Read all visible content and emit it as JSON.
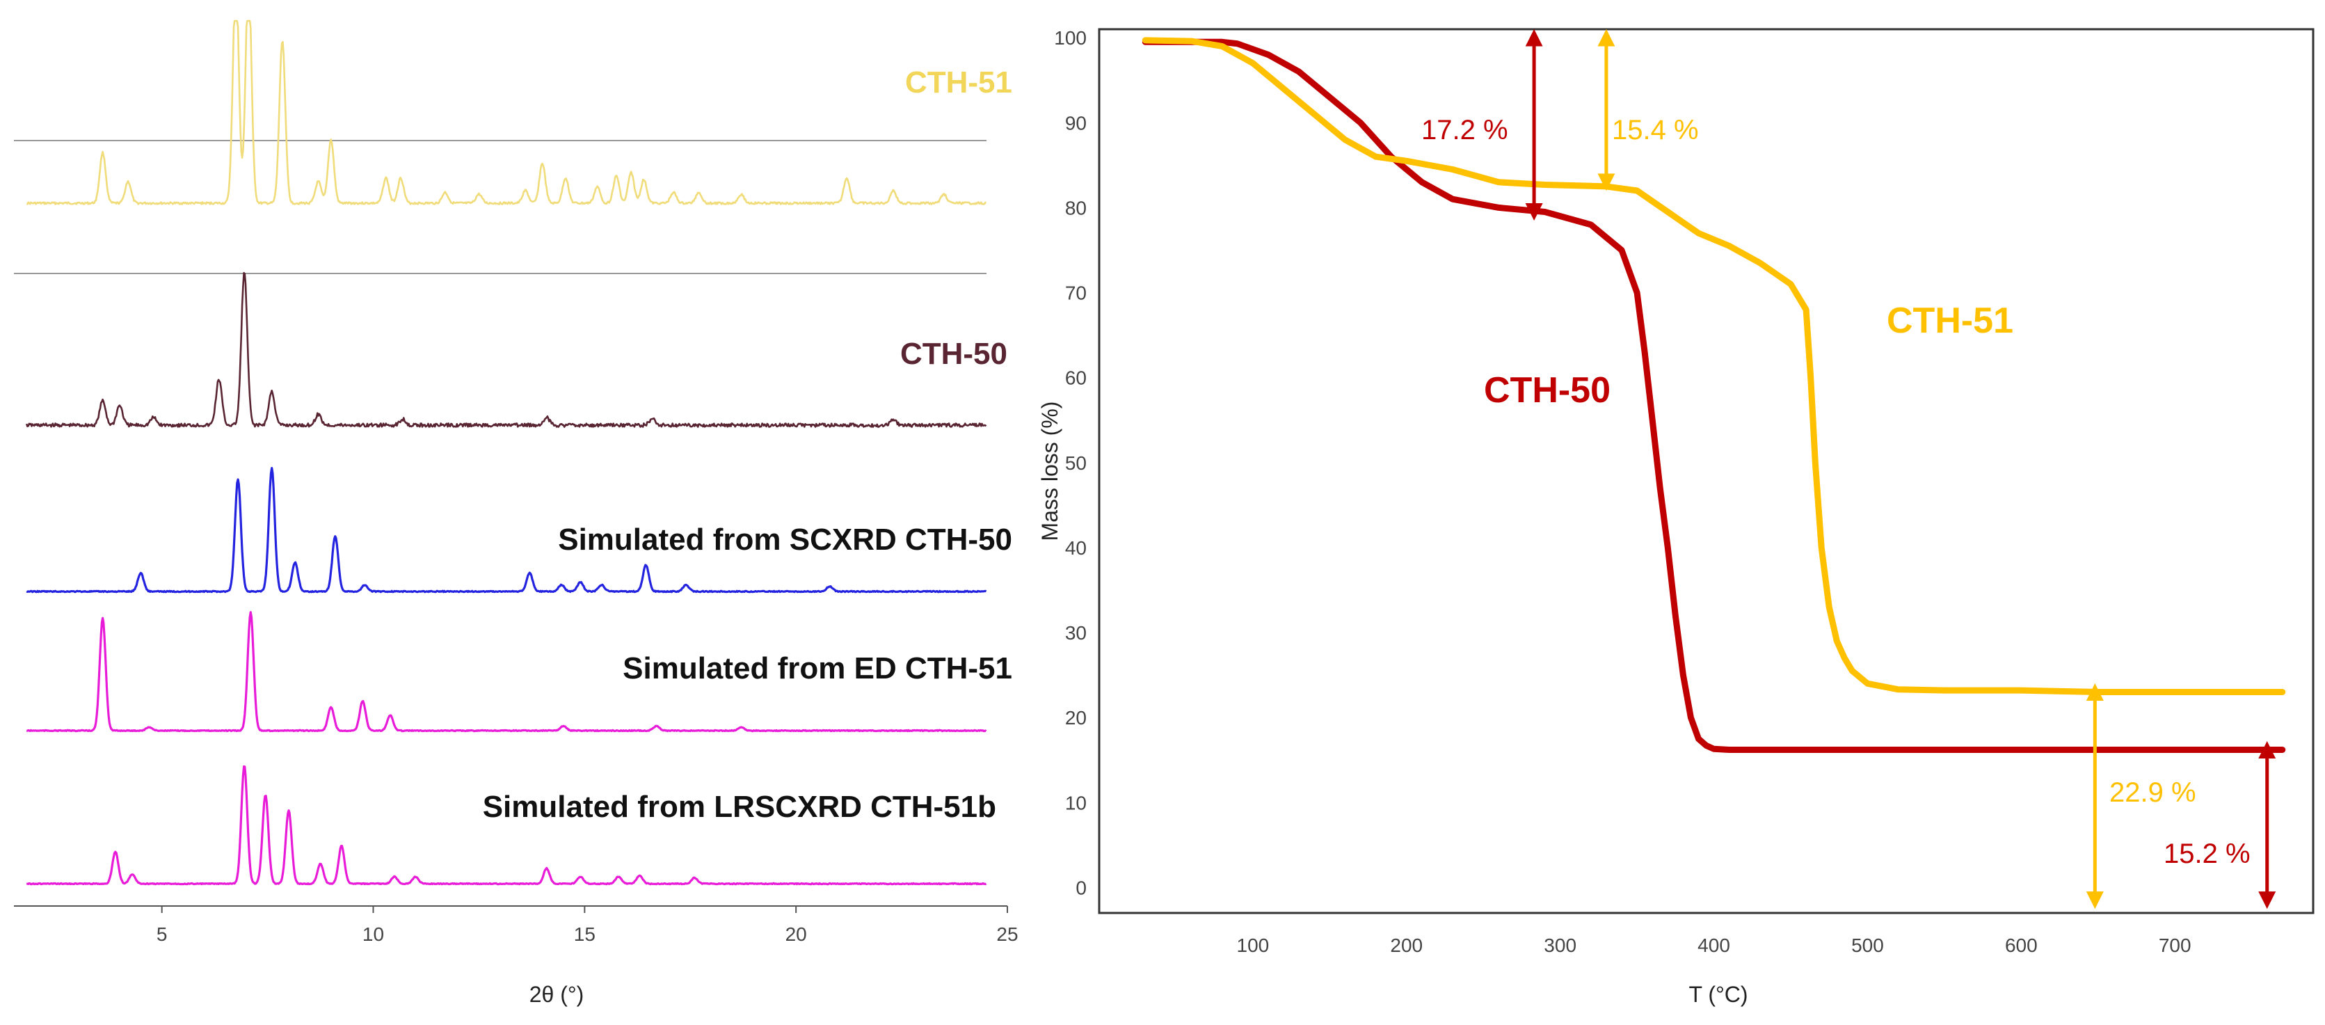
{
  "chart_data": [
    {
      "type": "line",
      "title": "",
      "xlabel": "2θ (°)",
      "ylabel": "",
      "xlim": [
        1.5,
        25
      ],
      "xticks": [
        5,
        10,
        15,
        20,
        25
      ],
      "grid": false,
      "series": [
        {
          "name": "CTH-51",
          "color": "#F0DC7A",
          "peaks": [
            [
              3.6,
              0.28
            ],
            [
              4.2,
              0.12
            ],
            [
              6.75,
              1.25
            ],
            [
              7.05,
              1.25
            ],
            [
              7.85,
              0.9
            ],
            [
              8.7,
              0.12
            ],
            [
              9.0,
              0.35
            ],
            [
              10.3,
              0.14
            ],
            [
              10.65,
              0.14
            ],
            [
              11.7,
              0.06
            ],
            [
              12.5,
              0.05
            ],
            [
              13.6,
              0.07
            ],
            [
              14.0,
              0.22
            ],
            [
              14.55,
              0.14
            ],
            [
              15.3,
              0.09
            ],
            [
              15.75,
              0.15
            ],
            [
              16.1,
              0.17
            ],
            [
              16.4,
              0.13
            ],
            [
              17.1,
              0.06
            ],
            [
              17.7,
              0.06
            ],
            [
              18.7,
              0.05
            ],
            [
              21.2,
              0.14
            ],
            [
              22.3,
              0.07
            ],
            [
              23.5,
              0.05
            ]
          ]
        },
        {
          "name": "CTH-50",
          "color": "#5A2533",
          "peaks": [
            [
              3.6,
              0.16
            ],
            [
              4.0,
              0.13
            ],
            [
              4.8,
              0.05
            ],
            [
              6.35,
              0.3
            ],
            [
              6.95,
              1.0
            ],
            [
              7.6,
              0.22
            ],
            [
              8.7,
              0.07
            ],
            [
              10.7,
              0.04
            ],
            [
              14.1,
              0.05
            ],
            [
              16.6,
              0.04
            ],
            [
              22.3,
              0.04
            ]
          ]
        },
        {
          "name": "Simulated from SCXRD CTH-50",
          "color": "#2323E0",
          "peaks": [
            [
              4.5,
              0.14
            ],
            [
              6.8,
              0.85
            ],
            [
              7.6,
              0.93
            ],
            [
              8.15,
              0.22
            ],
            [
              9.1,
              0.42
            ],
            [
              9.8,
              0.05
            ],
            [
              13.7,
              0.14
            ],
            [
              14.45,
              0.05
            ],
            [
              14.9,
              0.07
            ],
            [
              15.4,
              0.05
            ],
            [
              16.45,
              0.2
            ],
            [
              17.4,
              0.05
            ],
            [
              20.8,
              0.04
            ]
          ]
        },
        {
          "name": "Simulated from ED CTH-51",
          "color": "#E81CD8",
          "peaks": [
            [
              3.6,
              0.95
            ],
            [
              4.7,
              0.03
            ],
            [
              7.1,
              1.0
            ],
            [
              9.0,
              0.2
            ],
            [
              9.75,
              0.25
            ],
            [
              10.4,
              0.13
            ],
            [
              14.5,
              0.04
            ],
            [
              16.7,
              0.04
            ],
            [
              18.7,
              0.03
            ]
          ]
        },
        {
          "name": "Simulated from LRSCXRD CTH-51b",
          "color": "#E81CD8",
          "peaks": [
            [
              3.9,
              0.27
            ],
            [
              4.3,
              0.08
            ],
            [
              6.95,
              1.0
            ],
            [
              7.45,
              0.75
            ],
            [
              8.0,
              0.62
            ],
            [
              8.75,
              0.17
            ],
            [
              9.25,
              0.32
            ],
            [
              10.5,
              0.06
            ],
            [
              11.0,
              0.06
            ],
            [
              14.1,
              0.13
            ],
            [
              14.9,
              0.06
            ],
            [
              15.8,
              0.06
            ],
            [
              16.3,
              0.07
            ],
            [
              17.6,
              0.05
            ]
          ]
        }
      ],
      "labels": [
        "CTH-51",
        "CTH-50",
        "Simulated from SCXRD CTH-50",
        "Simulated from ED CTH-51",
        "Simulated from LRSCXRD CTH-51b"
      ]
    },
    {
      "type": "line",
      "title": "",
      "xlabel": "T (°C)",
      "ylabel": "Mass loss (%)",
      "xlim": [
        0,
        790
      ],
      "ylim": [
        -3,
        101
      ],
      "xticks": [
        100,
        200,
        300,
        400,
        500,
        600,
        700
      ],
      "yticks": [
        0,
        10,
        20,
        30,
        40,
        50,
        60,
        70,
        80,
        90,
        100
      ],
      "grid": false,
      "series": [
        {
          "name": "CTH-50",
          "color": "#C00000",
          "x": [
            30,
            80,
            90,
            110,
            130,
            150,
            170,
            190,
            210,
            230,
            260,
            290,
            320,
            340,
            350,
            355,
            360,
            365,
            370,
            375,
            380,
            385,
            390,
            395,
            400,
            410,
            450,
            500,
            600,
            700,
            770
          ],
          "y": [
            99.5,
            99.5,
            99.3,
            98,
            96,
            93,
            90,
            86,
            83,
            81,
            80,
            79.5,
            78,
            75,
            70,
            63,
            55,
            47,
            40,
            32,
            25,
            20,
            17.5,
            16.7,
            16.3,
            16.2,
            16.2,
            16.2,
            16.2,
            16.2,
            16.2
          ]
        },
        {
          "name": "CTH-51",
          "color": "#FFC000",
          "x": [
            30,
            60,
            80,
            100,
            120,
            140,
            160,
            180,
            200,
            230,
            260,
            290,
            330,
            350,
            370,
            390,
            410,
            430,
            450,
            460,
            463,
            466,
            470,
            475,
            480,
            485,
            490,
            500,
            520,
            550,
            600,
            650,
            700,
            770
          ],
          "y": [
            99.7,
            99.6,
            99,
            97,
            94,
            91,
            88,
            86,
            85.5,
            84.5,
            83,
            82.7,
            82.5,
            82,
            79.5,
            77,
            75.5,
            73.5,
            71,
            68,
            60,
            50,
            40,
            33,
            29,
            27,
            25.5,
            24,
            23.3,
            23.2,
            23.2,
            23,
            23,
            23
          ]
        }
      ],
      "annotations": [
        {
          "text": "17.2 %",
          "color": "#C00000"
        },
        {
          "text": "15.4 %",
          "color": "#FFC000"
        },
        {
          "text": "22.9 %",
          "color": "#FFC000"
        },
        {
          "text": "15.2 %",
          "color": "#C00000"
        }
      ],
      "labels": [
        {
          "text": "CTH-51",
          "color": "#FFC000"
        },
        {
          "text": "CTH-50",
          "color": "#C00000"
        }
      ]
    }
  ]
}
